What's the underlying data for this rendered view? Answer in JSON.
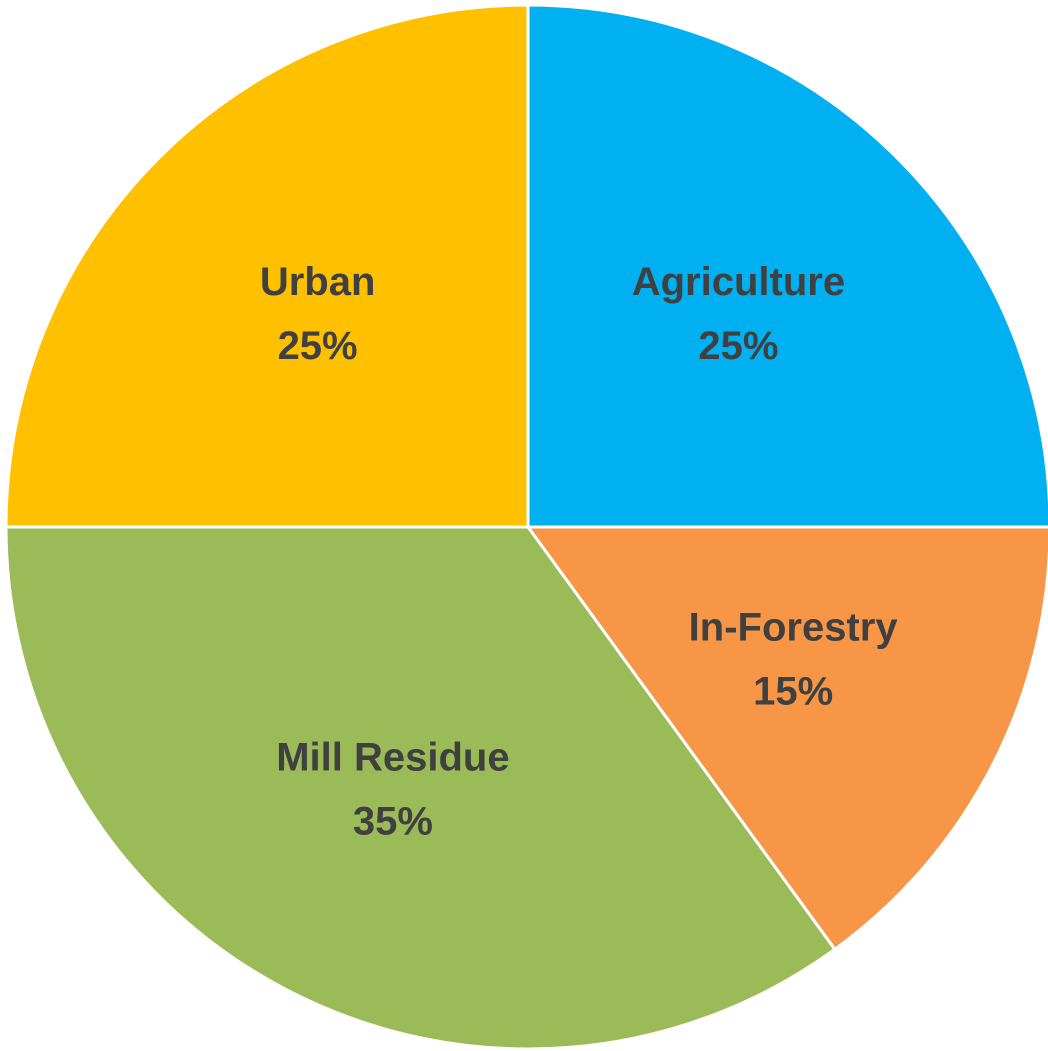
{
  "chart_data": {
    "type": "pie",
    "categories": [
      "Agriculture",
      "In-Forestry",
      "Mill Residue",
      "Urban"
    ],
    "values": [
      25,
      15,
      35,
      25
    ],
    "value_labels": [
      "25%",
      "15%",
      "35%",
      "25%"
    ],
    "colors": [
      "#00b0f0",
      "#f79646",
      "#9bbb59",
      "#ffc000"
    ]
  }
}
